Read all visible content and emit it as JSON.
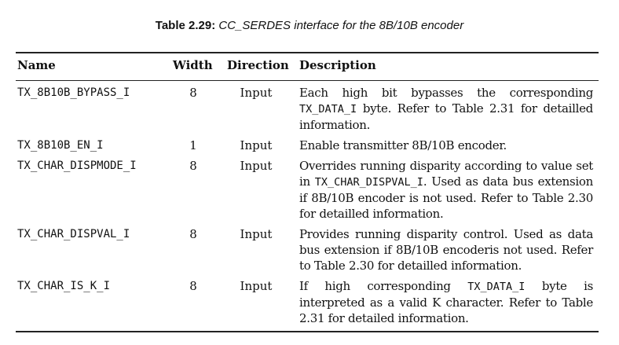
{
  "caption": {
    "label": "Table 2.29:",
    "text": "CC_SERDES interface for the 8B/10B encoder"
  },
  "headers": {
    "name": "Name",
    "width": "Width",
    "direction": "Direction",
    "description": "Description"
  },
  "rows": [
    {
      "name": "TX_8B10B_BYPASS_I",
      "width": "8",
      "direction": "Input",
      "desc": {
        "a": "Each high bit bypasses the corresponding ",
        "b": "TX_DATA_I",
        "c": " byte. Refer to Table 2.31 for detailled information."
      }
    },
    {
      "name": "TX_8B10B_EN_I",
      "width": "1",
      "direction": "Input",
      "desc": {
        "a": "Enable transmitter 8B/10B encoder."
      }
    },
    {
      "name": "TX_CHAR_DISPMODE_I",
      "width": "8",
      "direction": "Input",
      "desc": {
        "a": "Overrides running disparity according to value set in ",
        "b": "TX_CHAR_DISPVAL_I",
        "c": ". Used as data bus extension if 8B/10B encoder is not used. Refer to Table 2.30 for detailled information."
      }
    },
    {
      "name": "TX_CHAR_DISPVAL_I",
      "width": "8",
      "direction": "Input",
      "desc": {
        "a": "Provides running disparity control. Used as data bus extension if 8B/10B encoderis not used. Refer to Table 2.30 for detailled information."
      }
    },
    {
      "name": "TX_CHAR_IS_K_I",
      "width": "8",
      "direction": "Input",
      "desc": {
        "a": "If high corresponding ",
        "b": "TX_DATA_I",
        "c": " byte is interpreted as a valid K character. Refer to Table 2.31 for detailed information."
      }
    }
  ]
}
